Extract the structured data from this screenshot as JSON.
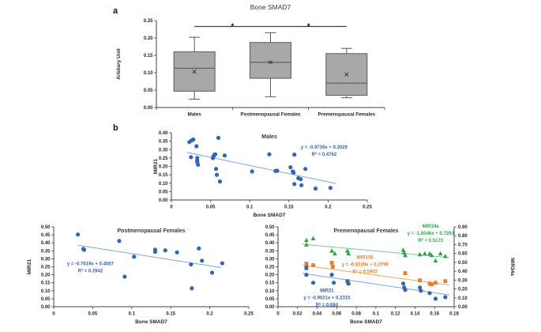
{
  "panels": {
    "a": "a",
    "b": "b"
  },
  "colors": {
    "blue": "#3565AE",
    "blue_light": "#7EA6D8",
    "orange": "#E87E2D",
    "orange_light": "#F0A868",
    "green": "#2CA64C",
    "green_light": "#7CC894",
    "box_fill": "#A8A8A8",
    "box_stroke": "#595959",
    "axis": "#404040",
    "text": "#262626",
    "title": "#383838"
  },
  "chart_data": [
    {
      "id": "box-bone-smad7",
      "type": "box",
      "title": "Bone SMAD7",
      "ylabel": "Arbitary Unit",
      "ylim": [
        0,
        0.25
      ],
      "yticks": [
        "0.00",
        "0.05",
        "0.10",
        "0.15",
        "0.20",
        "0.25"
      ],
      "categories": [
        "Males",
        "Postmenopausal Females",
        "Premenopausal Females"
      ],
      "boxes": [
        {
          "whisker_low": 0.024,
          "q1": 0.047,
          "median": 0.113,
          "q3": 0.16,
          "whisker_high": 0.202,
          "mean": 0.103
        },
        {
          "whisker_low": 0.031,
          "q1": 0.084,
          "median": 0.13,
          "q3": 0.187,
          "whisker_high": 0.215,
          "mean": 0.13
        },
        {
          "whisker_low": 0.028,
          "q1": 0.035,
          "median": 0.07,
          "q3": 0.155,
          "whisker_high": 0.17,
          "mean": 0.095
        }
      ],
      "significance": [
        {
          "from": 0,
          "to": 1,
          "label": "*",
          "y": 0.233
        },
        {
          "from": 1,
          "to": 2,
          "label": "*",
          "y": 0.233
        }
      ]
    },
    {
      "id": "scatter-males",
      "type": "scatter",
      "title": "Males",
      "xlabel": "Bone SMAD7",
      "ylabel": "MIR21",
      "xlim": [
        0,
        0.25
      ],
      "ylim": [
        0,
        0.4
      ],
      "xticks": [
        "0",
        "0.05",
        "0.1",
        "0.15",
        "0.2",
        "0.25"
      ],
      "yticks": [
        "0.00",
        "0.05",
        "0.10",
        "0.15",
        "0.20",
        "0.25",
        "0.30",
        "0.35",
        "0.40"
      ],
      "series": [
        {
          "name": "MIR21",
          "marker": "circle",
          "color_key": "blue",
          "trend_color_key": "blue_light",
          "axis": "y",
          "points": [
            [
              0.023,
              0.345
            ],
            [
              0.026,
              0.355
            ],
            [
              0.028,
              0.36
            ],
            [
              0.025,
              0.255
            ],
            [
              0.032,
              0.32
            ],
            [
              0.033,
              0.25
            ],
            [
              0.033,
              0.235
            ],
            [
              0.033,
              0.225
            ],
            [
              0.034,
              0.21
            ],
            [
              0.053,
              0.25
            ],
            [
              0.054,
              0.262
            ],
            [
              0.055,
              0.27
            ],
            [
              0.056,
              0.272
            ],
            [
              0.057,
              0.185
            ],
            [
              0.058,
              0.15
            ],
            [
              0.06,
              0.37
            ],
            [
              0.062,
              0.11
            ],
            [
              0.068,
              0.265
            ],
            [
              0.103,
              0.17
            ],
            [
              0.125,
              0.272
            ],
            [
              0.133,
              0.173
            ],
            [
              0.135,
              0.174
            ],
            [
              0.152,
              0.195
            ],
            [
              0.155,
              0.17
            ],
            [
              0.156,
              0.163
            ],
            [
              0.157,
              0.27
            ],
            [
              0.157,
              0.095
            ],
            [
              0.162,
              0.13
            ],
            [
              0.165,
              0.124
            ],
            [
              0.166,
              0.088
            ],
            [
              0.171,
              0.185
            ],
            [
              0.184,
              0.068
            ],
            [
              0.203,
              0.072
            ]
          ],
          "trend": {
            "slope": -0.9736,
            "intercept": 0.3029,
            "x1": 0.02,
            "x2": 0.21
          },
          "label": {
            "lines": [
              "y = -0.9736x + 0.3029",
              "R² = 0.4762"
            ],
            "pos": [
              0.195,
              0.305
            ]
          }
        }
      ]
    },
    {
      "id": "scatter-postmeno",
      "type": "scatter",
      "title": "Postmenopausal Females",
      "xlabel": "Bone SMAD7",
      "ylabel": "MIR21",
      "xlim": [
        0,
        0.25
      ],
      "ylim": [
        0,
        0.5
      ],
      "xticks": [
        "0",
        "0.05",
        "0.1",
        "0.15",
        "0.2",
        "0.25"
      ],
      "yticks": [
        "0.00",
        "0.05",
        "0.10",
        "0.15",
        "0.20",
        "0.25",
        "0.30",
        "0.35",
        "0.40",
        "0.45",
        "0.50"
      ],
      "series": [
        {
          "name": "MIR21",
          "marker": "circle",
          "color_key": "blue",
          "trend_color_key": "blue_light",
          "axis": "y",
          "points": [
            [
              0.031,
              0.452
            ],
            [
              0.038,
              0.362
            ],
            [
              0.039,
              0.356
            ],
            [
              0.084,
              0.412
            ],
            [
              0.091,
              0.188
            ],
            [
              0.103,
              0.313
            ],
            [
              0.13,
              0.357
            ],
            [
              0.13,
              0.344
            ],
            [
              0.143,
              0.353
            ],
            [
              0.158,
              0.34
            ],
            [
              0.176,
              0.265
            ],
            [
              0.177,
              0.115
            ],
            [
              0.186,
              0.365
            ],
            [
              0.19,
              0.288
            ],
            [
              0.203,
              0.213
            ],
            [
              0.216,
              0.272
            ]
          ],
          "trend": {
            "slope": -0.7619,
            "intercept": 0.4087,
            "x1": 0.03,
            "x2": 0.215
          },
          "label": {
            "lines": [
              "y = -0.7619x + 0.4087",
              "R² = 0.2942"
            ],
            "pos": [
              0.047,
              0.26
            ]
          }
        }
      ]
    },
    {
      "id": "scatter-premeno",
      "type": "scatter",
      "title": "Premenopausal Females",
      "xlabel": "Bone SMAD7",
      "ylabel": "",
      "y2label": "MIR34a",
      "xlim": [
        0,
        0.18
      ],
      "ylim": [
        0,
        0.5
      ],
      "y2lim": [
        0,
        0.9
      ],
      "xticks": [
        "0",
        "0.02",
        "0.04",
        "0.06",
        "0.08",
        "0.1",
        "0.12",
        "0.14",
        "0.16",
        "0.18"
      ],
      "yticks": [
        "0.00",
        "0.05",
        "0.10",
        "0.15",
        "0.20",
        "0.25",
        "0.30",
        "0.35",
        "0.40",
        "0.45",
        "0.50"
      ],
      "y2ticks": [
        "0.00",
        "0.10",
        "0.20",
        "0.30",
        "0.40",
        "0.50",
        "0.60",
        "0.70",
        "0.80",
        "0.90"
      ],
      "series": [
        {
          "name": "MIR34a",
          "marker": "triangle",
          "color_key": "green",
          "trend_color_key": "green_light",
          "axis": "y2",
          "points": [
            [
              0.029,
              0.75
            ],
            [
              0.029,
              0.7
            ],
            [
              0.036,
              0.77
            ],
            [
              0.055,
              0.63
            ],
            [
              0.058,
              0.6
            ],
            [
              0.071,
              0.63
            ],
            [
              0.072,
              0.6
            ],
            [
              0.128,
              0.64
            ],
            [
              0.129,
              0.61
            ],
            [
              0.13,
              0.58
            ],
            [
              0.145,
              0.59
            ],
            [
              0.15,
              0.6
            ],
            [
              0.155,
              0.6
            ],
            [
              0.157,
              0.58
            ],
            [
              0.161,
              0.52
            ],
            [
              0.166,
              0.6
            ],
            [
              0.171,
              0.57
            ]
          ],
          "trend": {
            "slope": -1.0046,
            "intercept": 0.7293,
            "x1": 0.025,
            "x2": 0.175
          },
          "label": {
            "lines": [
              "MIR34a",
              "y = -1.0046x + 0.7293",
              "R² = 0.5173"
            ],
            "pos": [
              0.156,
              0.89
            ]
          }
        },
        {
          "name": "MIR155",
          "marker": "square",
          "color_key": "orange",
          "trend_color_key": "orange_light",
          "axis": "y",
          "points": [
            [
              0.029,
              0.27
            ],
            [
              0.029,
              0.255
            ],
            [
              0.029,
              0.24
            ],
            [
              0.036,
              0.26
            ],
            [
              0.055,
              0.275
            ],
            [
              0.056,
              0.25
            ],
            [
              0.071,
              0.16
            ],
            [
              0.072,
              0.145
            ],
            [
              0.13,
              0.21
            ],
            [
              0.145,
              0.165
            ],
            [
              0.155,
              0.145
            ],
            [
              0.157,
              0.14
            ],
            [
              0.161,
              0.15
            ],
            [
              0.171,
              0.16
            ]
          ],
          "trend": {
            "slope": -0.8229,
            "intercept": 0.2799,
            "x1": 0.025,
            "x2": 0.175
          },
          "label": {
            "lines": [
              "MIR155",
              "y = -0.8229x + 0.2799",
              "R² = 0.5902"
            ],
            "pos": [
              0.089,
              0.3
            ]
          }
        },
        {
          "name": "MIR21",
          "marker": "circle",
          "color_key": "blue",
          "trend_color_key": "blue_light",
          "axis": "y",
          "points": [
            [
              0.029,
              0.245
            ],
            [
              0.029,
              0.2
            ],
            [
              0.036,
              0.15
            ],
            [
              0.055,
              0.2
            ],
            [
              0.057,
              0.15
            ],
            [
              0.071,
              0.16
            ],
            [
              0.072,
              0.145
            ],
            [
              0.128,
              0.145
            ],
            [
              0.129,
              0.12
            ],
            [
              0.13,
              0.105
            ],
            [
              0.145,
              0.12
            ],
            [
              0.146,
              0.1
            ],
            [
              0.155,
              0.085
            ],
            [
              0.161,
              0.05
            ],
            [
              0.171,
              0.06
            ]
          ],
          "trend": {
            "slope": -0.9021,
            "intercept": 0.2315,
            "x1": 0.025,
            "x2": 0.175
          },
          "label": {
            "lines": [
              "MIR21",
              "y = -0.9021x + 0.2315",
              "R² = 0.684"
            ],
            "pos": [
              0.05,
              0.092
            ]
          }
        }
      ]
    }
  ]
}
